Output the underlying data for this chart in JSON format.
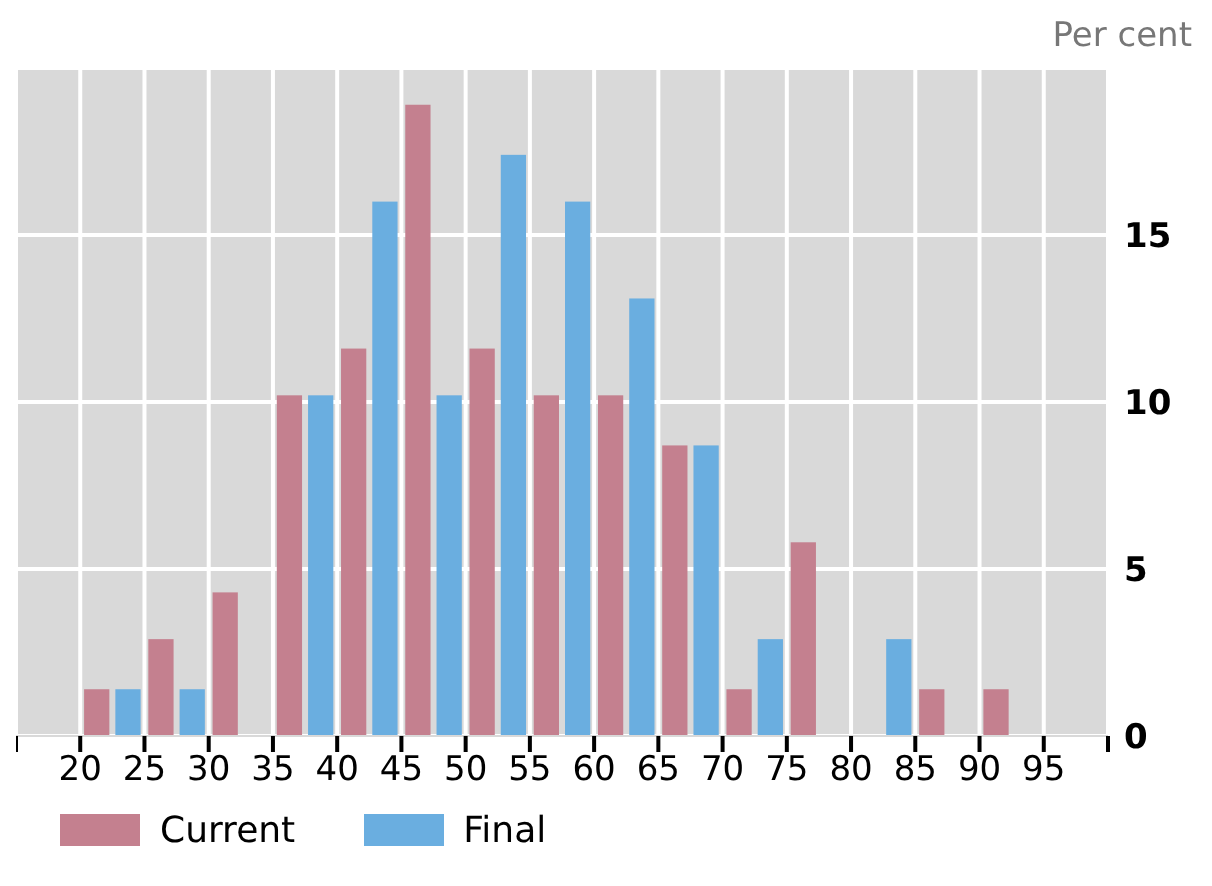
{
  "chart_data": {
    "type": "histogram",
    "ylabel": "Per cent",
    "bins": [
      15,
      20,
      25,
      30,
      35,
      40,
      45,
      50,
      55,
      60,
      65,
      70,
      75,
      80,
      85,
      90,
      95,
      100
    ],
    "series": [
      {
        "name": "Current",
        "color": "#c4808f",
        "values": [
          0,
          1.4,
          2.9,
          4.3,
          10.2,
          11.6,
          18.9,
          11.6,
          10.2,
          10.2,
          8.7,
          1.4,
          5.8,
          0,
          1.4,
          1.4,
          0
        ]
      },
      {
        "name": "Final",
        "color": "#6aaee0",
        "values": [
          0,
          1.4,
          1.4,
          0,
          10.2,
          16.0,
          10.2,
          17.4,
          16.0,
          13.1,
          8.7,
          2.9,
          0,
          2.9,
          0,
          0,
          0
        ]
      }
    ],
    "xlim": [
      15,
      100
    ],
    "xticks": [
      {
        "value": 15,
        "label": null
      },
      20,
      25,
      30,
      35,
      40,
      45,
      50,
      55,
      60,
      65,
      70,
      75,
      80,
      85,
      90,
      95,
      {
        "value": 100,
        "label": null
      }
    ],
    "ylim": [
      0,
      20
    ],
    "yticks": [
      0,
      5,
      10,
      15
    ],
    "grid": true,
    "legend": "bottom left"
  }
}
